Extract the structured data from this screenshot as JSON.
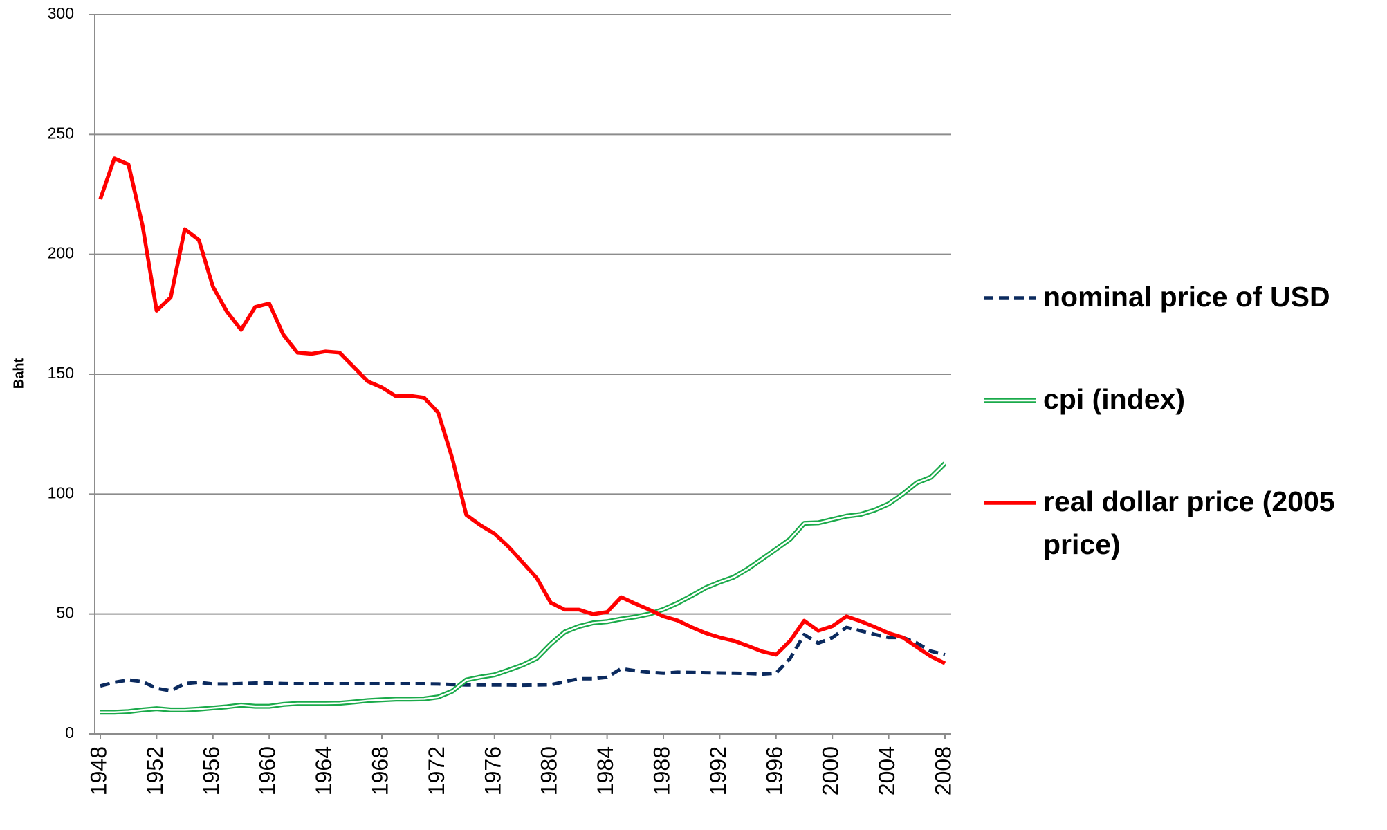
{
  "chart_data": {
    "type": "line",
    "y_label": "Baht",
    "x": [
      1948,
      1949,
      1950,
      1951,
      1952,
      1953,
      1954,
      1955,
      1956,
      1957,
      1958,
      1959,
      1960,
      1961,
      1962,
      1963,
      1964,
      1965,
      1966,
      1967,
      1968,
      1969,
      1970,
      1971,
      1972,
      1973,
      1974,
      1975,
      1976,
      1977,
      1978,
      1979,
      1980,
      1981,
      1982,
      1983,
      1984,
      1985,
      1986,
      1987,
      1988,
      1989,
      1990,
      1991,
      1992,
      1993,
      1994,
      1995,
      1996,
      1997,
      1998,
      1999,
      2000,
      2001,
      2002,
      2003,
      2004,
      2005,
      2006,
      2007,
      2008
    ],
    "xlim": [
      1948,
      2008
    ],
    "xticks": [
      1948,
      1952,
      1956,
      1960,
      1964,
      1968,
      1972,
      1976,
      1980,
      1984,
      1988,
      1992,
      1996,
      2000,
      2004,
      2008
    ],
    "ylim": [
      0,
      300
    ],
    "yticks": [
      0,
      50,
      100,
      150,
      200,
      250,
      300
    ],
    "grid": true,
    "legend": "right",
    "series": [
      {
        "name": "nominal price of USD",
        "color": "#0b2a5e",
        "style": "dashed",
        "values": [
          20,
          21.5,
          22.5,
          21.8,
          19,
          18,
          21,
          21.5,
          20.8,
          20.8,
          21,
          21.2,
          21.2,
          21,
          20.9,
          20.9,
          20.9,
          20.9,
          20.9,
          20.9,
          20.9,
          20.9,
          20.9,
          20.9,
          20.8,
          20.6,
          20.4,
          20.4,
          20.4,
          20.4,
          20.3,
          20.4,
          20.5,
          21.8,
          23,
          23,
          23.6,
          27.2,
          26.3,
          25.7,
          25.3,
          25.7,
          25.6,
          25.5,
          25.4,
          25.3,
          25.2,
          24.9,
          25.3,
          31.4,
          41.4,
          37.8,
          40.1,
          44.4,
          43,
          41.5,
          40.2,
          40.2,
          37.9,
          34.5,
          33
        ]
      },
      {
        "name": "cpi (index)",
        "color": "#1aaa4a",
        "style": "double",
        "values": [
          9,
          9,
          9.3,
          10,
          10.5,
          10,
          10,
          10.3,
          10.8,
          11.3,
          12,
          11.5,
          11.5,
          12.3,
          12.7,
          12.7,
          12.7,
          12.8,
          13.3,
          13.9,
          14.2,
          14.5,
          14.5,
          14.6,
          15.4,
          17.8,
          22.5,
          23.7,
          24.6,
          26.6,
          28.7,
          31.5,
          37.5,
          42.5,
          44.8,
          46.3,
          46.8,
          47.9,
          48.8,
          50,
          51.9,
          54.5,
          57.6,
          60.9,
          63.3,
          65.4,
          68.8,
          72.9,
          77,
          81.2,
          87.8,
          88,
          89.4,
          90.8,
          91.5,
          93.3,
          95.9,
          100,
          104.7,
          107,
          112.8
        ]
      },
      {
        "name": "real dollar price (2005 price)",
        "color": "#ff0000",
        "style": "solid",
        "values": [
          223,
          240,
          237.5,
          212,
          176.5,
          182,
          210.5,
          206,
          186.5,
          176,
          168.5,
          178,
          179.5,
          166.5,
          159,
          158.5,
          159.5,
          159,
          153,
          147,
          144.5,
          140.8,
          141,
          140.2,
          134,
          115,
          91.3,
          87,
          83.5,
          78,
          71.5,
          65,
          54.7,
          51.8,
          51.8,
          49.9,
          50.8,
          57,
          54.3,
          51.8,
          49,
          47.3,
          44.5,
          42,
          40.2,
          38.8,
          36.7,
          34.4,
          33,
          38.8,
          47.2,
          43,
          44.9,
          49,
          47,
          44.6,
          42,
          40.2,
          36.2,
          32.3,
          29.4
        ]
      }
    ]
  }
}
